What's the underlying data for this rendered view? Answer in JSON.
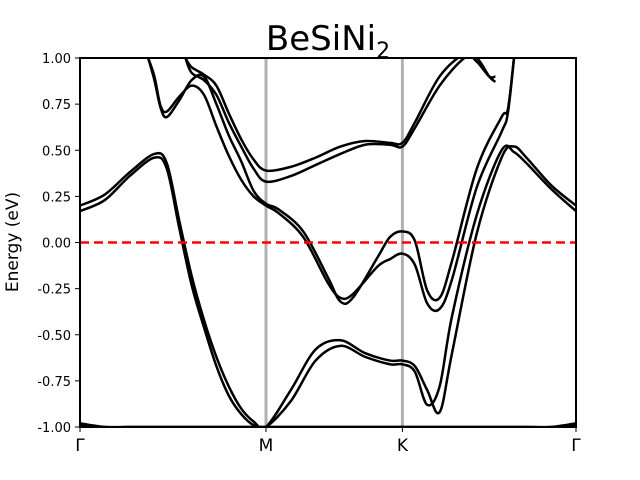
{
  "chart_data": {
    "type": "line",
    "title": "BeSiNi",
    "title_subscript": "2",
    "xlabel": "",
    "ylabel": "Energy (eV)",
    "ylim": [
      -1.0,
      1.0
    ],
    "yticks": [
      "1.00",
      "0.75",
      "0.50",
      "0.25",
      "0.00",
      "-0.25",
      "-0.50",
      "-0.75",
      "-1.00"
    ],
    "ytick_values": [
      1.0,
      0.75,
      0.5,
      0.25,
      0.0,
      -0.25,
      -0.5,
      -0.75,
      -1.0
    ],
    "xlim": [
      0,
      4
    ],
    "xtick_labels": [
      "Γ",
      "M",
      "K",
      "Γ"
    ],
    "xtick_positions": [
      0,
      1.5,
      2.6,
      4
    ],
    "high_symmetry_lines": [
      1.5,
      2.6
    ],
    "fermi_level": 0.0,
    "colors": {
      "bands": "#000000",
      "fermi": "#ff0000",
      "sym_lines": "#b0b0b0"
    },
    "series": [
      {
        "x": [
          0.0,
          0.2,
          0.4,
          0.6,
          0.8,
          1.0,
          1.2,
          1.5,
          1.8,
          2.1,
          2.4,
          2.6,
          2.8,
          3.0,
          3.2,
          3.4,
          3.5,
          3.6,
          3.8,
          4.0
        ],
        "values": [
          -0.99,
          -1.0,
          -1.0,
          -1.0,
          -1.0,
          -1.0,
          -1.0,
          -1.0,
          -1.0,
          -1.0,
          -1.0,
          -1.0,
          -1.0,
          -1.0,
          -1.0,
          -1.0,
          -1.0,
          -1.0,
          -1.0,
          -0.99
        ]
      },
      {
        "x": [
          0.0,
          0.2,
          0.4,
          0.6,
          0.8,
          1.0,
          1.2,
          1.5,
          1.8,
          2.1,
          2.4,
          2.6,
          2.8,
          3.0,
          3.2,
          3.4,
          3.5,
          3.6,
          3.8,
          4.0
        ],
        "values": [
          -0.98,
          -1.0,
          -1.0,
          -1.0,
          -1.0,
          -1.0,
          -1.0,
          -1.0,
          -1.0,
          -1.0,
          -1.0,
          -1.0,
          -1.0,
          -1.0,
          -1.0,
          -1.0,
          -1.0,
          -1.0,
          -1.0,
          -0.98
        ]
      },
      {
        "x": [
          0.0,
          0.2,
          0.4,
          0.6,
          0.7,
          0.8,
          0.9,
          1.0,
          1.1,
          1.2,
          1.3,
          1.4,
          1.5,
          1.7,
          1.9,
          2.1,
          2.3,
          2.5,
          2.6,
          2.7,
          2.8,
          2.9,
          3.0,
          3.2,
          3.4,
          3.5,
          3.6,
          3.8,
          4.0
        ],
        "values": [
          0.17,
          0.23,
          0.36,
          0.46,
          0.4,
          0.08,
          -0.23,
          -0.46,
          -0.67,
          -0.83,
          -0.93,
          -0.99,
          -1.0,
          -0.86,
          -0.64,
          -0.56,
          -0.62,
          -0.66,
          -0.66,
          -0.7,
          -0.88,
          -0.78,
          -0.4,
          0.15,
          0.5,
          0.49,
          0.43,
          0.29,
          0.17
        ]
      },
      {
        "x": [
          0.0,
          0.2,
          0.4,
          0.6,
          0.7,
          0.8,
          0.9,
          1.0,
          1.1,
          1.2,
          1.3,
          1.4,
          1.5,
          1.7,
          1.9,
          2.1,
          2.3,
          2.5,
          2.6,
          2.7,
          2.8,
          2.9,
          3.0,
          3.2,
          3.4,
          3.5,
          3.6,
          3.8,
          4.0
        ],
        "values": [
          0.2,
          0.26,
          0.38,
          0.48,
          0.43,
          0.12,
          -0.18,
          -0.42,
          -0.62,
          -0.78,
          -0.9,
          -0.97,
          -1.0,
          -0.8,
          -0.58,
          -0.53,
          -0.6,
          -0.64,
          -0.64,
          -0.67,
          -0.8,
          -0.92,
          -0.6,
          0.05,
          0.46,
          0.52,
          0.46,
          0.31,
          0.2
        ]
      },
      {
        "x": [
          0.55,
          0.6,
          0.65,
          0.7,
          0.8,
          0.9,
          1.0,
          1.1,
          1.2,
          1.3,
          1.4,
          1.5,
          1.6,
          1.8,
          2.0,
          2.1,
          2.2,
          2.4,
          2.5,
          2.6,
          2.7,
          2.8,
          2.9,
          3.0,
          3.2,
          3.4,
          3.45,
          3.5
        ],
        "values": [
          1.0,
          0.9,
          0.74,
          0.71,
          0.79,
          0.85,
          0.8,
          0.63,
          0.47,
          0.34,
          0.25,
          0.2,
          0.16,
          0.03,
          -0.22,
          -0.3,
          -0.28,
          -0.13,
          -0.09,
          -0.06,
          -0.12,
          -0.33,
          -0.36,
          -0.2,
          0.3,
          0.6,
          0.7,
          1.0
        ]
      },
      {
        "x": [
          0.55,
          0.6,
          0.65,
          0.7,
          0.8,
          0.9,
          1.0,
          1.1,
          1.2,
          1.3,
          1.4,
          1.5,
          1.6,
          1.8,
          2.0,
          2.1,
          2.2,
          2.4,
          2.5,
          2.6,
          2.7,
          2.8,
          2.9,
          3.0,
          3.2,
          3.4,
          3.45,
          3.5
        ],
        "values": [
          1.0,
          0.88,
          0.73,
          0.68,
          0.77,
          0.88,
          0.9,
          0.75,
          0.58,
          0.44,
          0.28,
          0.21,
          0.18,
          0.06,
          -0.19,
          -0.32,
          -0.3,
          -0.08,
          0.03,
          0.06,
          0.01,
          -0.26,
          -0.3,
          -0.1,
          0.4,
          0.68,
          0.72,
          1.0
        ]
      },
      {
        "x": [
          0.85,
          0.9,
          1.0,
          1.1,
          1.2,
          1.3,
          1.4,
          1.5,
          1.7,
          1.9,
          2.1,
          2.3,
          2.5,
          2.6,
          2.7,
          2.9,
          3.1,
          3.2,
          3.3,
          3.35
        ],
        "values": [
          1.0,
          0.92,
          0.88,
          0.8,
          0.65,
          0.52,
          0.4,
          0.33,
          0.36,
          0.42,
          0.48,
          0.53,
          0.53,
          0.52,
          0.62,
          0.85,
          1.0,
          1.0,
          0.9,
          0.87
        ]
      },
      {
        "x": [
          0.85,
          0.9,
          1.0,
          1.1,
          1.2,
          1.3,
          1.4,
          1.5,
          1.7,
          1.9,
          2.1,
          2.3,
          2.5,
          2.6,
          2.7,
          2.9,
          3.1,
          3.2,
          3.3,
          3.35
        ],
        "values": [
          1.0,
          0.95,
          0.91,
          0.85,
          0.7,
          0.56,
          0.45,
          0.39,
          0.41,
          0.46,
          0.52,
          0.55,
          0.54,
          0.54,
          0.65,
          0.9,
          1.02,
          0.98,
          0.9,
          0.9
        ]
      }
    ]
  }
}
